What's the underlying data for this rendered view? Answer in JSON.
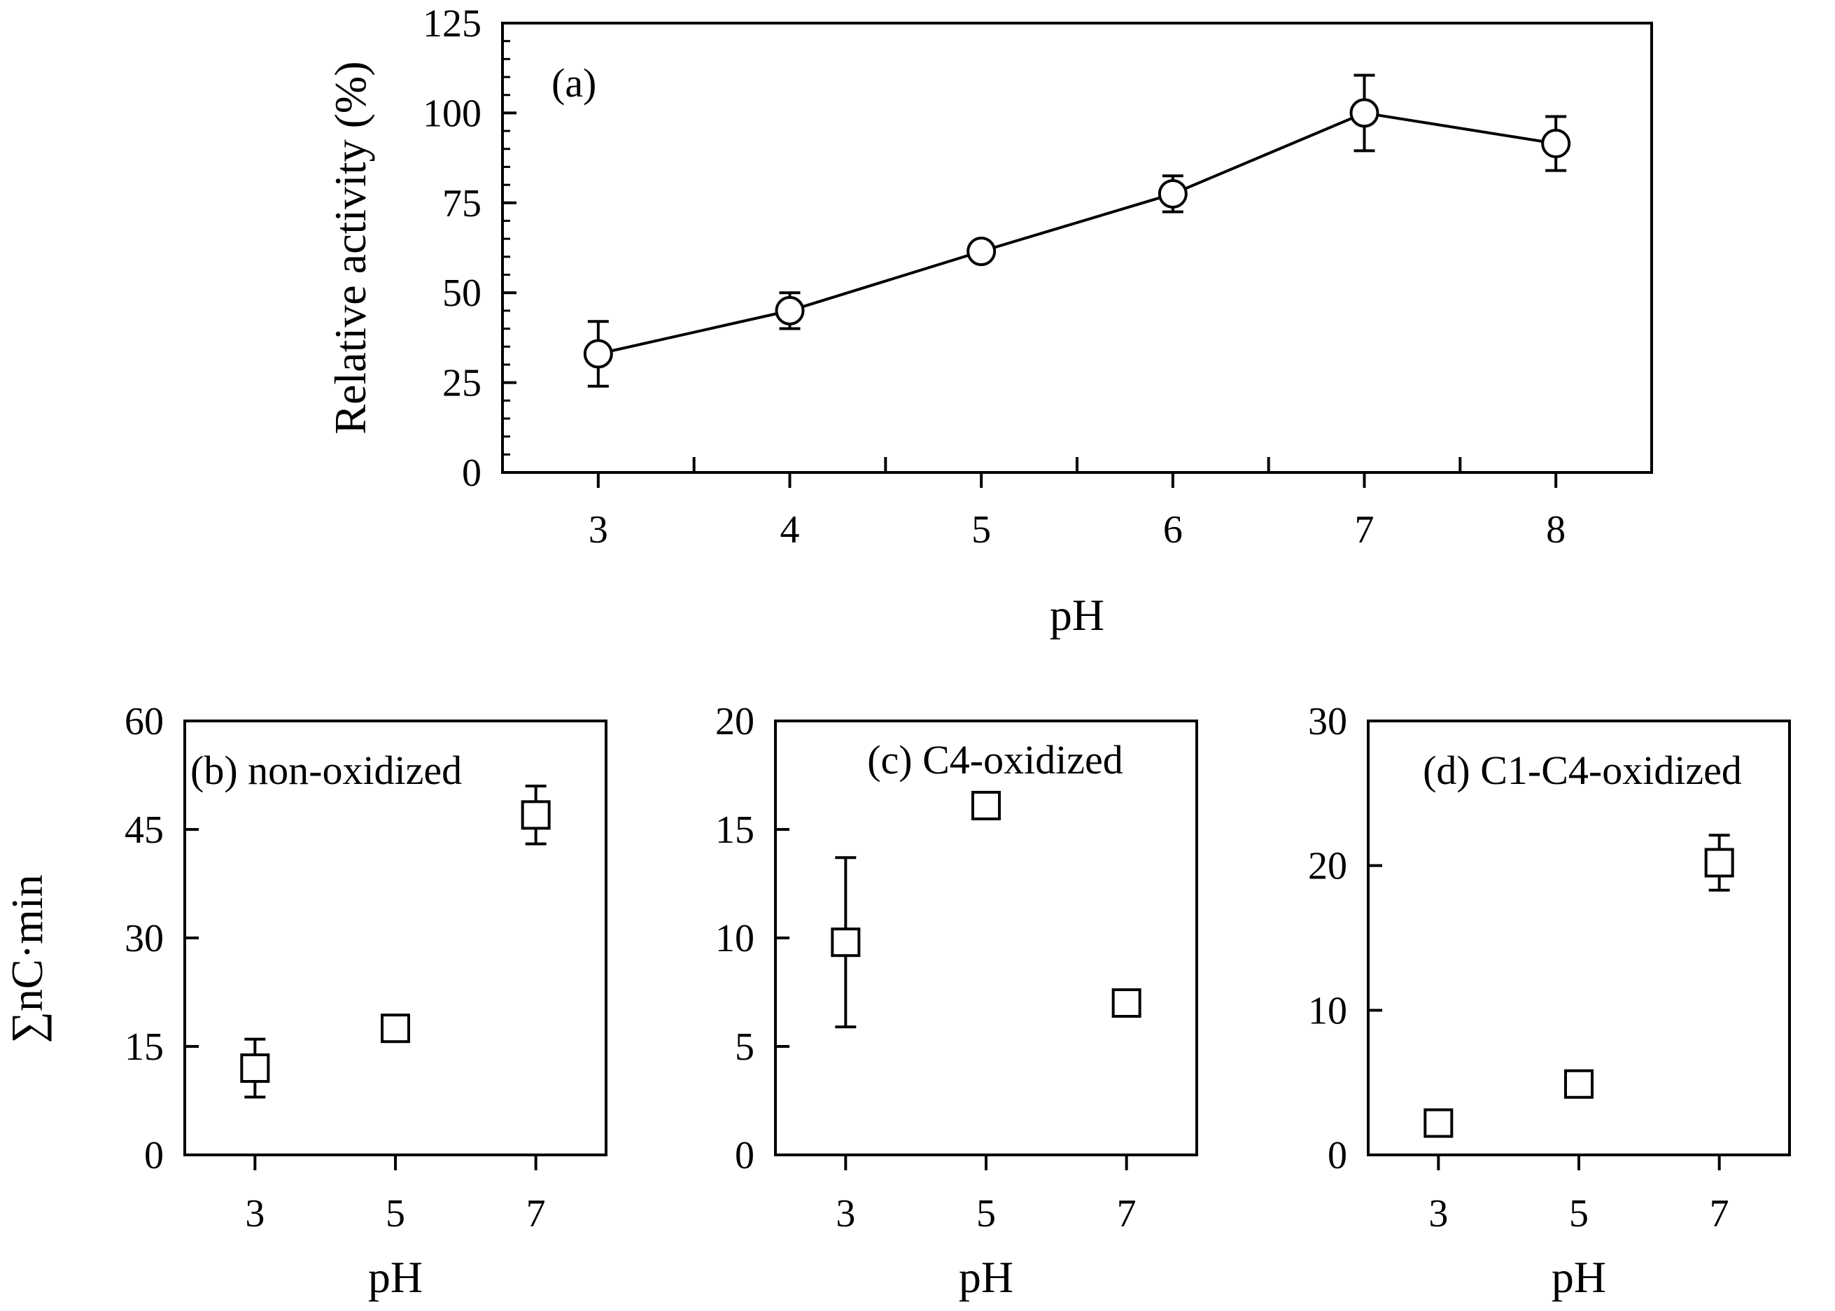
{
  "figure": {
    "shared_ylabel_bottom": "∑nC·min"
  },
  "chart_data": [
    {
      "id": "a",
      "type": "line",
      "panel_label": "(a)",
      "title": "",
      "xlabel": "pH",
      "ylabel": "Relative activity (%)",
      "x": [
        3,
        4,
        5,
        6,
        7,
        8
      ],
      "series": [
        {
          "name": "Relative activity",
          "values": [
            33,
            45,
            61.5,
            77.5,
            100,
            91.5
          ],
          "error": [
            9,
            5,
            2,
            5,
            10.5,
            7.5
          ],
          "marker": "circle"
        }
      ],
      "xticks": [
        3,
        4,
        5,
        6,
        7,
        8
      ],
      "yticks": [
        0,
        25,
        50,
        75,
        100,
        125
      ],
      "ylim": [
        0,
        125
      ],
      "xlim": [
        2.5,
        8.5
      ],
      "legend": "none",
      "grid": false
    },
    {
      "id": "b",
      "type": "scatter",
      "panel_label": "(b) non-oxidized",
      "title": "",
      "xlabel": "pH",
      "ylabel": "",
      "x": [
        3,
        5,
        7
      ],
      "series": [
        {
          "name": "non-oxidized",
          "values": [
            12,
            17.5,
            47
          ],
          "error": [
            4,
            0.8,
            4
          ],
          "marker": "square"
        }
      ],
      "xticks": [
        3,
        5,
        7
      ],
      "yticks": [
        0,
        15,
        30,
        45,
        60
      ],
      "ylim": [
        0,
        60
      ],
      "xlim": [
        2,
        8
      ],
      "legend": "none",
      "grid": false
    },
    {
      "id": "c",
      "type": "scatter",
      "panel_label": "(c) C4-oxidized",
      "title": "",
      "xlabel": "pH",
      "ylabel": "",
      "x": [
        3,
        5,
        7
      ],
      "series": [
        {
          "name": "C4-oxidized",
          "values": [
            9.8,
            16.1,
            7
          ],
          "error": [
            3.9,
            0.3,
            0.4
          ],
          "marker": "square"
        }
      ],
      "xticks": [
        3,
        5,
        7
      ],
      "yticks": [
        0,
        5,
        10,
        15,
        20
      ],
      "ylim": [
        0,
        20
      ],
      "xlim": [
        2,
        8
      ],
      "legend": "none",
      "grid": false
    },
    {
      "id": "d",
      "type": "scatter",
      "panel_label": "(d) C1-C4-oxidized",
      "title": "",
      "xlabel": "pH",
      "ylabel": "",
      "x": [
        3,
        5,
        7
      ],
      "series": [
        {
          "name": "C1-C4-oxidized",
          "values": [
            2.2,
            4.9,
            20.2
          ],
          "error": [
            0.3,
            0.3,
            1.9
          ],
          "marker": "square"
        }
      ],
      "xticks": [
        3,
        5,
        7
      ],
      "yticks": [
        0,
        10,
        20,
        30
      ],
      "ylim": [
        0,
        30
      ],
      "xlim": [
        2,
        8
      ],
      "legend": "none",
      "grid": false
    }
  ]
}
